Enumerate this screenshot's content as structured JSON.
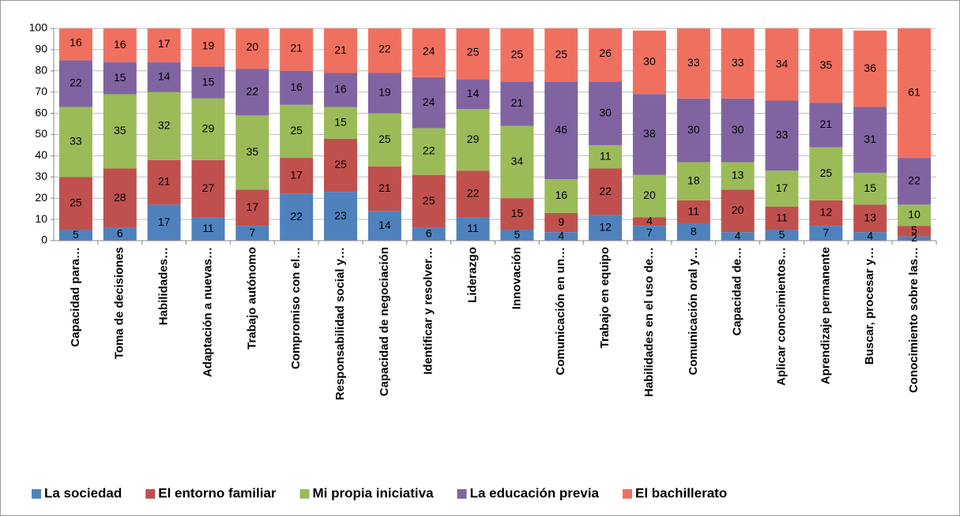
{
  "chart_data": {
    "type": "stacked_bar",
    "categories": [
      "Capacidad para…",
      "Toma de decisiones",
      "Habilidades…",
      "Adaptación a nuevas…",
      "Trabajo autónomo",
      "Compromiso con el…",
      "Responsabilidad social y…",
      "Capacidad de negociación",
      "Identificar y resolver…",
      "Liderazgo",
      "Innovación",
      "Comunicación en un…",
      "Trabajo en equipo",
      "Habilidades en el uso de…",
      "Comunicación oral y…",
      "Capacidad de…",
      "Aplicar conocimientos…",
      "Aprendizaje permanente",
      "Buscar, procesar y…",
      "Conocimiento sobre las…"
    ],
    "series": [
      {
        "name": "La sociedad",
        "color": "#4f81bd",
        "values": [
          5,
          6,
          17,
          11,
          7,
          22,
          23,
          14,
          6,
          11,
          5,
          4,
          12,
          7,
          8,
          4,
          5,
          7,
          4,
          2
        ]
      },
      {
        "name": "El entorno familiar",
        "color": "#c0504d",
        "values": [
          25,
          28,
          21,
          27,
          17,
          17,
          25,
          21,
          25,
          22,
          15,
          9,
          22,
          4,
          11,
          20,
          11,
          12,
          13,
          5
        ]
      },
      {
        "name": "Mi propia iniciativa",
        "color": "#9bbb59",
        "values": [
          33,
          35,
          32,
          29,
          35,
          25,
          15,
          25,
          22,
          29,
          34,
          16,
          11,
          20,
          18,
          13,
          17,
          25,
          15,
          10
        ]
      },
      {
        "name": "La educación previa",
        "color": "#8064a2",
        "values": [
          22,
          15,
          14,
          15,
          22,
          16,
          16,
          19,
          24,
          14,
          21,
          46,
          30,
          38,
          30,
          30,
          33,
          21,
          31,
          22
        ]
      },
      {
        "name": "El bachillerato",
        "color": "#f07060",
        "values": [
          16,
          16,
          17,
          19,
          20,
          21,
          21,
          22,
          24,
          25,
          25,
          25,
          26,
          30,
          33,
          33,
          34,
          35,
          36,
          61
        ]
      }
    ],
    "ylim": [
      0,
      100
    ],
    "yticks": [
      0,
      10,
      20,
      30,
      40,
      50,
      60,
      70,
      80,
      90,
      100
    ],
    "grid": true,
    "legend": "bottom"
  }
}
